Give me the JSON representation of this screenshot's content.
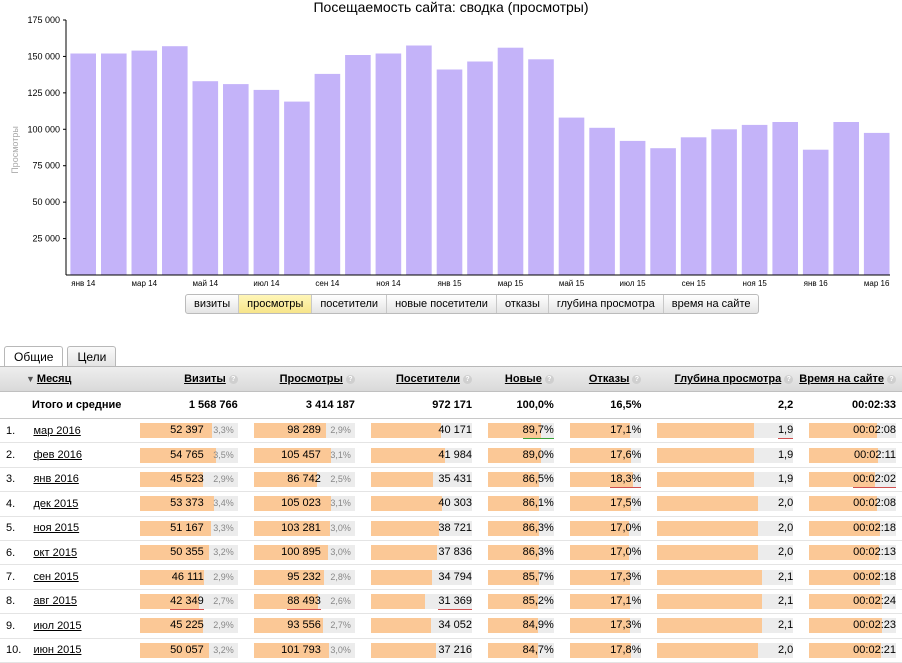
{
  "chart_data": {
    "type": "bar",
    "title": "Посещаемость сайта: сводка (просмотры)",
    "ylabel": "Просмотры",
    "ylim": [
      0,
      175000
    ],
    "y_ticks": [
      "25 000",
      "50 000",
      "75 000",
      "100 000",
      "125 000",
      "150 000",
      "175 000"
    ],
    "x_tick_labels": [
      "янв 14",
      "мар 14",
      "май 14",
      "июл 14",
      "сен 14",
      "ноя 14",
      "янв 15",
      "мар 15",
      "май 15",
      "июл 15",
      "сен 15",
      "ноя 15",
      "янв 16",
      "мар 16"
    ],
    "values": [
      152000,
      152000,
      154000,
      157000,
      133000,
      131000,
      127000,
      119000,
      138000,
      151000,
      152000,
      157500,
      141000,
      146500,
      156000,
      148000,
      108000,
      101000,
      92000,
      87000,
      94500,
      100000,
      103000,
      105000,
      86000,
      105000,
      97500
    ],
    "bar_color": "#c4b3f9",
    "grid": false
  },
  "segments": [
    {
      "label": "визиты",
      "active": false
    },
    {
      "label": "просмотры",
      "active": true
    },
    {
      "label": "посетители",
      "active": false
    },
    {
      "label": "новые посетители",
      "active": false
    },
    {
      "label": "отказы",
      "active": false
    },
    {
      "label": "глубина просмотра",
      "active": false
    },
    {
      "label": "время на сайте",
      "active": false
    }
  ],
  "tabs": [
    {
      "label": "Общие",
      "active": true
    },
    {
      "label": "Цели",
      "active": false
    }
  ],
  "table": {
    "headers": {
      "month": "Месяц",
      "visits": "Визиты",
      "views": "Просмотры",
      "visitors": "Посетители",
      "new": "Новые",
      "bounce": "Отказы",
      "depth": "Глубина просмотра",
      "time": "Время на сайте"
    },
    "totals": {
      "label": "Итого и средние",
      "visits": "1 568 766",
      "views": "3 414 187",
      "visitors": "972 171",
      "new": "100,0%",
      "bounce": "16,5%",
      "depth": "2,2",
      "time": "00:02:33"
    },
    "rows": [
      {
        "num": "1.",
        "month": "мар 2016",
        "visits": "52 397",
        "visits_pct": "3,3%",
        "visits_f": 0.74,
        "views": "98 289",
        "views_pct": "2,9%",
        "views_f": 0.71,
        "visitors": "40 171",
        "visitors_f": 0.69,
        "new": "89,7%",
        "new_f": 0.81,
        "bounce": "17,1%",
        "bounce_f": 0.84,
        "depth": "1,9",
        "depth_f": 0.71,
        "time": "00:02:08",
        "time_f": 0.78,
        "mark": {
          "new": "green",
          "depth": "red"
        }
      },
      {
        "num": "2.",
        "month": "фев 2016",
        "visits": "54 765",
        "visits_pct": "3,5%",
        "visits_f": 0.78,
        "views": "105 457",
        "views_pct": "3,1%",
        "views_f": 0.76,
        "visitors": "41 984",
        "visitors_f": 0.73,
        "new": "89,0%",
        "new_f": 0.8,
        "bounce": "17,6%",
        "bounce_f": 0.85,
        "depth": "1,9",
        "depth_f": 0.71,
        "time": "00:02:11",
        "time_f": 0.79,
        "mark": {}
      },
      {
        "num": "3.",
        "month": "янв 2016",
        "visits": "45 523",
        "visits_pct": "2,9%",
        "visits_f": 0.64,
        "views": "86 742",
        "views_pct": "2,5%",
        "views_f": 0.63,
        "visitors": "35 431",
        "visitors_f": 0.61,
        "new": "86,5%",
        "new_f": 0.78,
        "bounce": "18,3%",
        "bounce_f": 0.88,
        "depth": "1,9",
        "depth_f": 0.71,
        "time": "00:02:02",
        "time_f": 0.76,
        "mark": {
          "bounce": "red",
          "time": "red"
        }
      },
      {
        "num": "4.",
        "month": "дек 2015",
        "visits": "53 373",
        "visits_pct": "3,4%",
        "visits_f": 0.76,
        "views": "105 023",
        "views_pct": "3,1%",
        "views_f": 0.76,
        "visitors": "40 303",
        "visitors_f": 0.7,
        "new": "86,1%",
        "new_f": 0.77,
        "bounce": "17,5%",
        "bounce_f": 0.85,
        "depth": "2,0",
        "depth_f": 0.74,
        "time": "00:02:08",
        "time_f": 0.78,
        "mark": {}
      },
      {
        "num": "5.",
        "month": "ноя 2015",
        "visits": "51 167",
        "visits_pct": "3,3%",
        "visits_f": 0.73,
        "views": "103 281",
        "views_pct": "3,0%",
        "views_f": 0.75,
        "visitors": "38 721",
        "visitors_f": 0.67,
        "new": "86,3%",
        "new_f": 0.77,
        "bounce": "17,0%",
        "bounce_f": 0.83,
        "depth": "2,0",
        "depth_f": 0.74,
        "time": "00:02:18",
        "time_f": 0.82,
        "mark": {}
      },
      {
        "num": "6.",
        "month": "окт 2015",
        "visits": "50 355",
        "visits_pct": "3,2%",
        "visits_f": 0.71,
        "views": "100 895",
        "views_pct": "3,0%",
        "views_f": 0.73,
        "visitors": "37 836",
        "visitors_f": 0.65,
        "new": "86,3%",
        "new_f": 0.77,
        "bounce": "17,0%",
        "bounce_f": 0.83,
        "depth": "2,0",
        "depth_f": 0.74,
        "time": "00:02:13",
        "time_f": 0.8,
        "mark": {}
      },
      {
        "num": "7.",
        "month": "сен 2015",
        "visits": "46 111",
        "visits_pct": "2,9%",
        "visits_f": 0.65,
        "views": "95 232",
        "views_pct": "2,8%",
        "views_f": 0.69,
        "visitors": "34 794",
        "visitors_f": 0.6,
        "new": "85,7%",
        "new_f": 0.77,
        "bounce": "17,3%",
        "bounce_f": 0.84,
        "depth": "2,1",
        "depth_f": 0.77,
        "time": "00:02:18",
        "time_f": 0.82,
        "mark": {}
      },
      {
        "num": "8.",
        "month": "авг 2015",
        "visits": "42 349",
        "visits_pct": "2,7%",
        "visits_f": 0.6,
        "views": "88 493",
        "views_pct": "2,6%",
        "views_f": 0.64,
        "visitors": "31 369",
        "visitors_f": 0.54,
        "new": "85,2%",
        "new_f": 0.76,
        "bounce": "17,1%",
        "bounce_f": 0.84,
        "depth": "2,1",
        "depth_f": 0.77,
        "time": "00:02:24",
        "time_f": 0.84,
        "mark": {
          "visits": "red",
          "views": "red",
          "visitors": "red"
        }
      },
      {
        "num": "9.",
        "month": "июл 2015",
        "visits": "45 225",
        "visits_pct": "2,9%",
        "visits_f": 0.64,
        "views": "93 556",
        "views_pct": "2,7%",
        "views_f": 0.68,
        "visitors": "34 052",
        "visitors_f": 0.59,
        "new": "84,9%",
        "new_f": 0.76,
        "bounce": "17,3%",
        "bounce_f": 0.84,
        "depth": "2,1",
        "depth_f": 0.77,
        "time": "00:02:23",
        "time_f": 0.84,
        "mark": {}
      },
      {
        "num": "10.",
        "month": "июн 2015",
        "visits": "50 057",
        "visits_pct": "3,2%",
        "visits_f": 0.71,
        "views": "101 793",
        "views_pct": "3,0%",
        "views_f": 0.74,
        "visitors": "37 216",
        "visitors_f": 0.64,
        "new": "84,7%",
        "new_f": 0.76,
        "bounce": "17,8%",
        "bounce_f": 0.86,
        "depth": "2,0",
        "depth_f": 0.74,
        "time": "00:02:21",
        "time_f": 0.83,
        "mark": {}
      }
    ]
  }
}
